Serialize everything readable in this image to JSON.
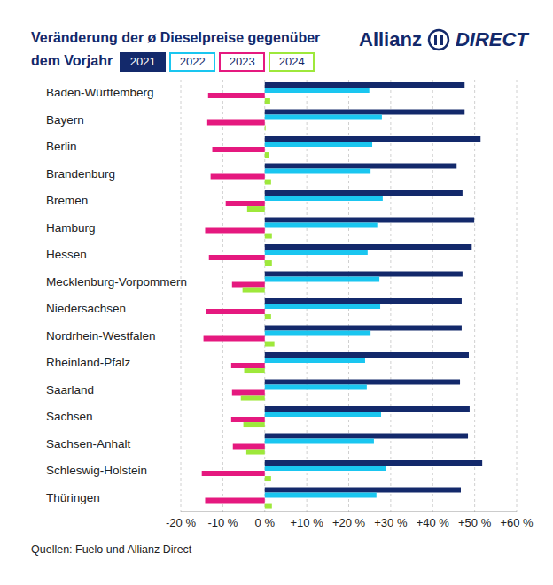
{
  "chart_data": {
    "type": "bar",
    "orientation": "horizontal",
    "title": "Veränderung der ø Dieselpreise gegenüber dem Vorjahr",
    "logo": [
      "Allianz",
      "DIRECT"
    ],
    "source": "Quellen: Fuelo und Allianz Direct",
    "legend": "top",
    "grid": true,
    "categories": [
      "Baden-Württemberg",
      "Bayern",
      "Berlin",
      "Brandenburg",
      "Bremen",
      "Hamburg",
      "Hessen",
      "Mecklenburg-Vorpommern",
      "Niedersachsen",
      "Nordrhein-Westfalen",
      "Rheinland-Pfalz",
      "Saarland",
      "Sachsen",
      "Sachsen-Anhalt",
      "Schleswig-Holstein",
      "Thüringen"
    ],
    "series": [
      {
        "name": "2021",
        "color": "#13296b",
        "values": [
          47.6,
          47.6,
          51.4,
          45.7,
          47.1,
          49.9,
          49.3,
          47.1,
          46.9,
          46.9,
          48.6,
          46.5,
          48.8,
          48.4,
          51.8,
          46.7
        ]
      },
      {
        "name": "2022",
        "color": "#1ac6f0",
        "values": [
          24.9,
          27.9,
          25.6,
          25.2,
          28.1,
          26.8,
          24.5,
          27.3,
          27.5,
          25.2,
          23.9,
          24.3,
          27.7,
          26.0,
          28.8,
          26.6
        ]
      },
      {
        "name": "2023",
        "color": "#e5197f",
        "values": [
          -13.5,
          -13.7,
          -12.5,
          -12.9,
          -9.3,
          -14.2,
          -13.3,
          -7.8,
          -14.0,
          -14.6,
          -8.0,
          -7.8,
          -8.0,
          -7.6,
          -15.0,
          -14.2
        ]
      },
      {
        "name": "2024",
        "color": "#9ee83b",
        "values": [
          1.3,
          0.2,
          1.0,
          1.5,
          -4.2,
          1.7,
          1.7,
          -5.3,
          1.5,
          2.3,
          -4.9,
          -5.7,
          -5.1,
          -4.4,
          1.5,
          1.7
        ]
      }
    ],
    "xlim": [
      -20,
      60
    ],
    "xticks": [
      {
        "value": -20,
        "label": "-20 %"
      },
      {
        "value": -10,
        "label": "-10 %"
      },
      {
        "value": 0,
        "label": "0 %"
      },
      {
        "value": 10,
        "label": "+10 %"
      },
      {
        "value": 20,
        "label": "+20 %"
      },
      {
        "value": 30,
        "label": "+30 %"
      },
      {
        "value": 40,
        "label": "+40 %"
      },
      {
        "value": 50,
        "label": "+50 %"
      },
      {
        "value": 60,
        "label": "+60 %"
      }
    ]
  }
}
